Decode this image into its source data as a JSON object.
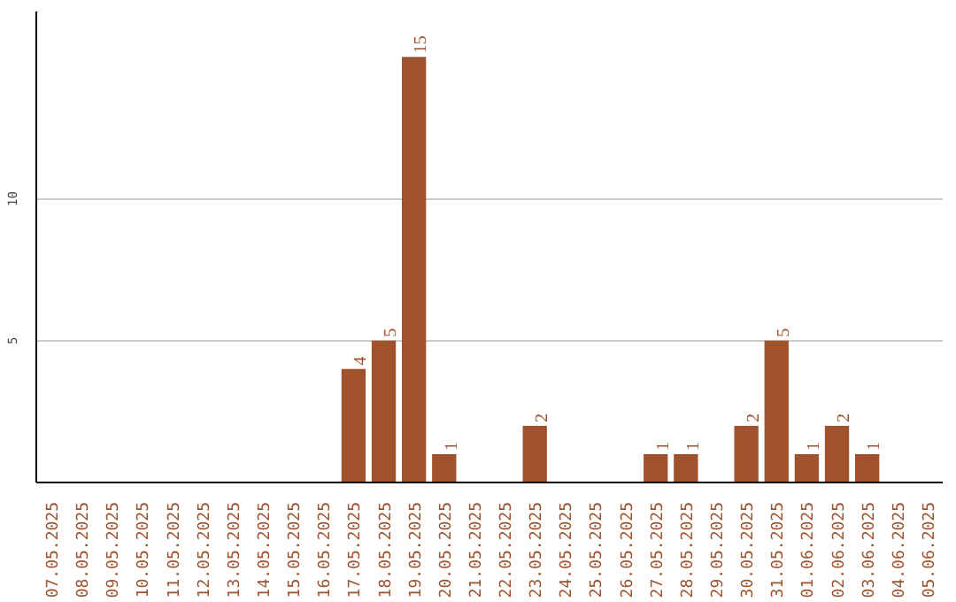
{
  "chart_data": {
    "type": "bar",
    "categories": [
      "07.05.2025",
      "08.05.2025",
      "09.05.2025",
      "10.05.2025",
      "11.05.2025",
      "12.05.2025",
      "13.05.2025",
      "14.05.2025",
      "15.05.2025",
      "16.05.2025",
      "17.05.2025",
      "18.05.2025",
      "19.05.2025",
      "20.05.2025",
      "21.05.2025",
      "22.05.2025",
      "23.05.2025",
      "24.05.2025",
      "25.05.2025",
      "26.05.2025",
      "27.05.2025",
      "28.05.2025",
      "29.05.2025",
      "30.05.2025",
      "31.05.2025",
      "01.06.2025",
      "02.06.2025",
      "03.06.2025",
      "04.06.2025",
      "05.06.2025"
    ],
    "values": [
      0,
      0,
      0,
      0,
      0,
      0,
      0,
      0,
      0,
      0,
      4,
      5,
      15,
      1,
      0,
      0,
      2,
      0,
      0,
      0,
      1,
      1,
      0,
      2,
      5,
      1,
      2,
      1,
      0,
      0
    ],
    "value_labels": [
      null,
      null,
      null,
      null,
      null,
      null,
      null,
      null,
      null,
      null,
      "4",
      "5",
      "15",
      "1",
      null,
      null,
      "2",
      null,
      null,
      null,
      "1",
      "1",
      null,
      "2",
      "5",
      "1",
      "2",
      "1",
      null,
      null
    ],
    "color": "#a0522d",
    "ylim": [
      0,
      16.6
    ],
    "yticks": [
      5,
      10
    ],
    "grid": "y"
  }
}
